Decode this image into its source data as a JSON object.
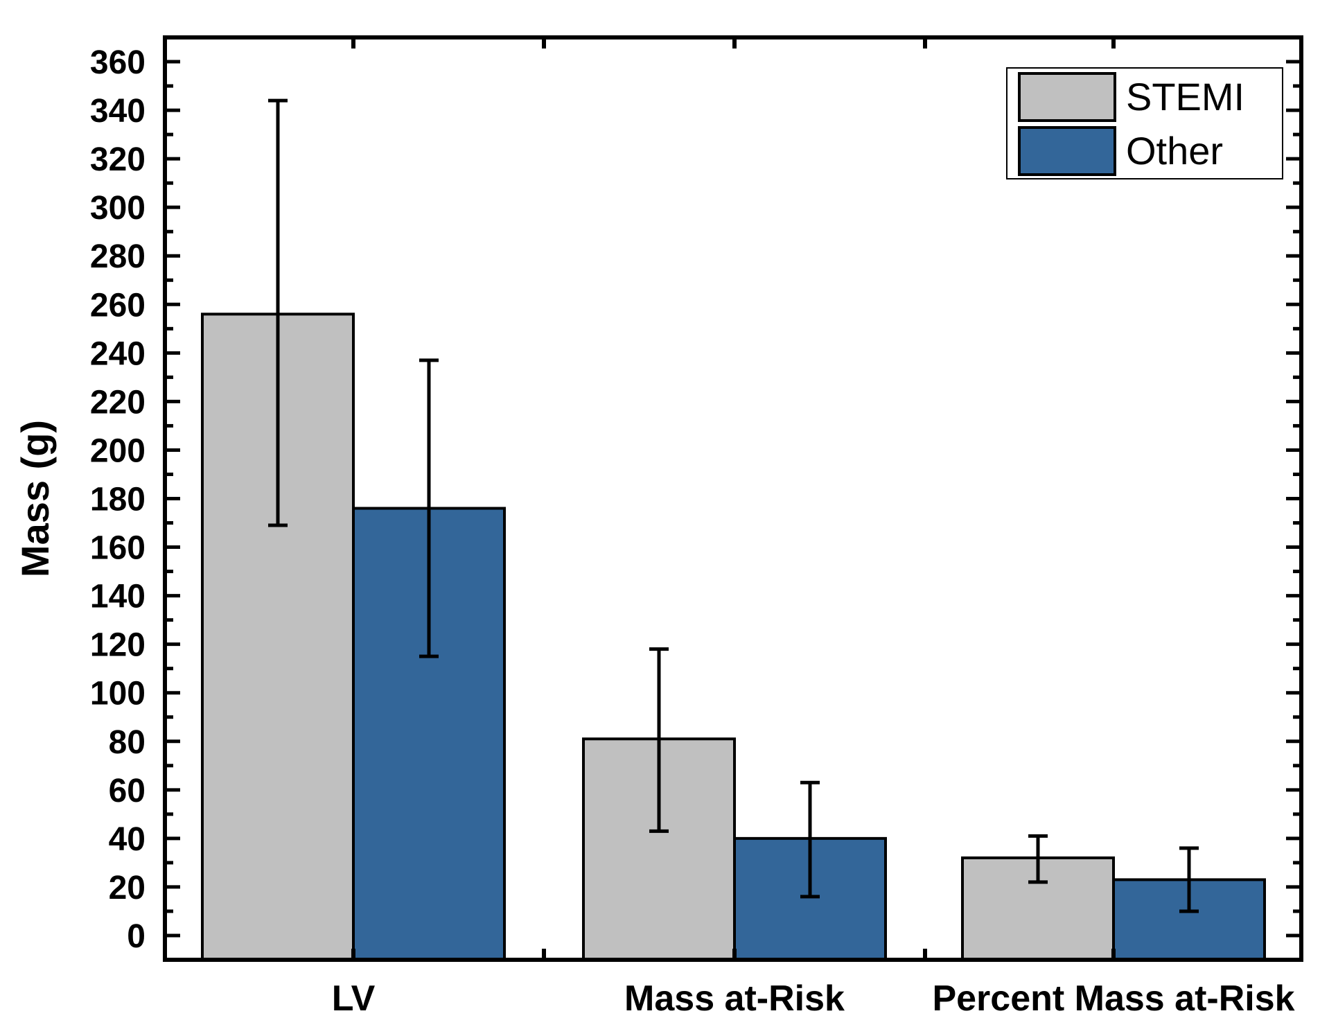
{
  "chart_data": {
    "type": "bar",
    "categories": [
      "LV",
      "Mass at-Risk",
      "Percent Mass at-Risk"
    ],
    "series": [
      {
        "name": "STEMI",
        "values": [
          256,
          81,
          32
        ],
        "error_low": [
          169,
          43,
          22
        ],
        "error_high": [
          344,
          118,
          41
        ],
        "color": "#c0c0c0"
      },
      {
        "name": "Other",
        "values": [
          176,
          40,
          23
        ],
        "error_low": [
          115,
          16,
          10
        ],
        "error_high": [
          237,
          63,
          36
        ],
        "color": "#336699"
      }
    ],
    "ylabel": "Mass (g)",
    "xlabel": "",
    "ylim": [
      -10,
      370
    ],
    "yticks": [
      0,
      20,
      40,
      60,
      80,
      100,
      120,
      140,
      160,
      180,
      200,
      220,
      240,
      260,
      280,
      300,
      320,
      340,
      360
    ],
    "legend_position": "top-right",
    "grid": false
  }
}
